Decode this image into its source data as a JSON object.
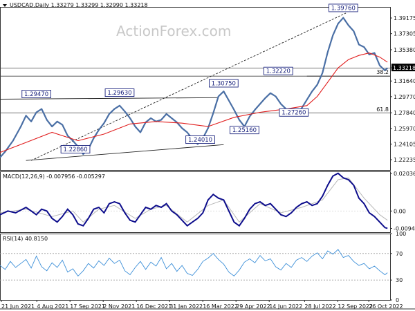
{
  "watermark": "ActionForex.com",
  "chart_data": {
    "type": "line",
    "price_panel": {
      "header": {
        "symbol": "USDCAD,Daily",
        "values": "1.33279 1.33299 1.32990 1.33218"
      },
      "ylim": [
        1.21,
        1.405
      ],
      "y_ticks": [
        "1.39175",
        "1.37305",
        "1.35380",
        "1.33218",
        "1.31640",
        "1.29770",
        "1.27840",
        "1.25970",
        "1.24105",
        "1.22235"
      ],
      "current_price": "1.33218",
      "price_path": [
        [
          0,
          1.225
        ],
        [
          2,
          1.232
        ],
        [
          5,
          1.245
        ],
        [
          8,
          1.262
        ],
        [
          10,
          1.275
        ],
        [
          12,
          1.268
        ],
        [
          14,
          1.279
        ],
        [
          16,
          1.283
        ],
        [
          18,
          1.27
        ],
        [
          20,
          1.262
        ],
        [
          22,
          1.268
        ],
        [
          24,
          1.264
        ],
        [
          26,
          1.251
        ],
        [
          28,
          1.245
        ],
        [
          30,
          1.238
        ],
        [
          32,
          1.229
        ],
        [
          34,
          1.235
        ],
        [
          36,
          1.248
        ],
        [
          38,
          1.258
        ],
        [
          40,
          1.266
        ],
        [
          42,
          1.277
        ],
        [
          44,
          1.283
        ],
        [
          46,
          1.287
        ],
        [
          48,
          1.28
        ],
        [
          50,
          1.272
        ],
        [
          52,
          1.262
        ],
        [
          54,
          1.255
        ],
        [
          56,
          1.267
        ],
        [
          58,
          1.272
        ],
        [
          60,
          1.268
        ],
        [
          62,
          1.27
        ],
        [
          64,
          1.277
        ],
        [
          66,
          1.272
        ],
        [
          68,
          1.267
        ],
        [
          70,
          1.26
        ],
        [
          72,
          1.255
        ],
        [
          74,
          1.247
        ],
        [
          76,
          1.241
        ],
        [
          78,
          1.248
        ],
        [
          80,
          1.26
        ],
        [
          82,
          1.278
        ],
        [
          84,
          1.298
        ],
        [
          86,
          1.304
        ],
        [
          88,
          1.293
        ],
        [
          90,
          1.282
        ],
        [
          92,
          1.27
        ],
        [
          94,
          1.262
        ],
        [
          96,
          1.274
        ],
        [
          98,
          1.282
        ],
        [
          100,
          1.289
        ],
        [
          102,
          1.296
        ],
        [
          104,
          1.302
        ],
        [
          106,
          1.298
        ],
        [
          108,
          1.289
        ],
        [
          110,
          1.283
        ],
        [
          112,
          1.281
        ],
        [
          114,
          1.277
        ],
        [
          116,
          1.284
        ],
        [
          118,
          1.294
        ],
        [
          120,
          1.304
        ],
        [
          122,
          1.312
        ],
        [
          124,
          1.326
        ],
        [
          126,
          1.351
        ],
        [
          128,
          1.371
        ],
        [
          130,
          1.385
        ],
        [
          132,
          1.392
        ],
        [
          134,
          1.383
        ],
        [
          136,
          1.376
        ],
        [
          138,
          1.36
        ],
        [
          140,
          1.357
        ],
        [
          142,
          1.348
        ],
        [
          144,
          1.35
        ],
        [
          146,
          1.335
        ],
        [
          148,
          1.329
        ],
        [
          149,
          1.332
        ]
      ],
      "ma_path": [
        [
          0,
          1.231
        ],
        [
          10,
          1.243
        ],
        [
          20,
          1.255
        ],
        [
          30,
          1.245
        ],
        [
          40,
          1.253
        ],
        [
          50,
          1.265
        ],
        [
          60,
          1.268
        ],
        [
          70,
          1.266
        ],
        [
          80,
          1.262
        ],
        [
          90,
          1.273
        ],
        [
          100,
          1.279
        ],
        [
          110,
          1.283
        ],
        [
          118,
          1.287
        ],
        [
          122,
          1.298
        ],
        [
          126,
          1.315
        ],
        [
          130,
          1.332
        ],
        [
          134,
          1.342
        ],
        [
          138,
          1.347
        ],
        [
          142,
          1.35
        ],
        [
          146,
          1.345
        ],
        [
          149,
          1.339
        ]
      ],
      "annotations": [
        {
          "text": "1.29470",
          "x": 14,
          "y": 1.2947,
          "side": "left"
        },
        {
          "text": "1.29630",
          "x": 46,
          "y": 1.2963,
          "side": "left"
        },
        {
          "text": "1.22860",
          "x": 29,
          "y": 1.2286,
          "side": "left"
        },
        {
          "text": "1.24010",
          "x": 77,
          "y": 1.2401,
          "side": "left"
        },
        {
          "text": "1.30750",
          "x": 86,
          "y": 1.3075,
          "side": "left"
        },
        {
          "text": "1.25160",
          "x": 94,
          "y": 1.2516,
          "side": "left"
        },
        {
          "text": "1.32220",
          "x": 107,
          "y": 1.3222,
          "side": "left"
        },
        {
          "text": "1.27260",
          "x": 113,
          "y": 1.2726,
          "side": "left"
        },
        {
          "text": "1.39760",
          "x": 132,
          "y": 1.3976,
          "side": "left"
        }
      ],
      "fib_labels": [
        {
          "text": "61.8",
          "y": 1.2784
        },
        {
          "text": "38.2",
          "y": 1.3233
        }
      ],
      "hlines": [
        1.3222,
        1.3319,
        1.2784
      ],
      "trendlines": [
        {
          "from": [
            0,
            1.2947
          ],
          "to": [
            84,
            1.2965
          ],
          "style": "solid"
        },
        {
          "from": [
            10,
            1.2214
          ],
          "to": [
            86,
            1.2403
          ],
          "style": "solid"
        },
        {
          "from": [
            12,
            1.2214
          ],
          "to": [
            133,
            1.3976
          ],
          "style": "dashed"
        },
        {
          "from": [
            118,
            1.3222
          ],
          "to": [
            150,
            1.3222
          ],
          "style": "solid"
        }
      ]
    },
    "macd_panel": {
      "header": "MACD(12,26,9) -0.007956 -0.005297",
      "ylim": [
        -0.0115,
        0.0215
      ],
      "y_ticks": [
        "0.02036",
        "0.00",
        "-0.009438"
      ],
      "macd_path": [
        [
          0,
          -0.002
        ],
        [
          3,
          0.0
        ],
        [
          6,
          -0.001
        ],
        [
          10,
          0.002
        ],
        [
          12,
          0.0
        ],
        [
          14,
          -0.002
        ],
        [
          16,
          0.001
        ],
        [
          18,
          0.0
        ],
        [
          20,
          -0.004
        ],
        [
          22,
          -0.006
        ],
        [
          24,
          -0.003
        ],
        [
          26,
          0.001
        ],
        [
          28,
          -0.002
        ],
        [
          30,
          -0.007
        ],
        [
          32,
          -0.008
        ],
        [
          34,
          -0.004
        ],
        [
          36,
          0.001
        ],
        [
          38,
          0.002
        ],
        [
          40,
          -0.001
        ],
        [
          42,
          0.004
        ],
        [
          44,
          0.005
        ],
        [
          46,
          0.004
        ],
        [
          48,
          -0.001
        ],
        [
          50,
          -0.005
        ],
        [
          52,
          -0.006
        ],
        [
          54,
          -0.002
        ],
        [
          56,
          0.002
        ],
        [
          58,
          0.001
        ],
        [
          60,
          0.003
        ],
        [
          62,
          0.002
        ],
        [
          64,
          0.004
        ],
        [
          66,
          0.0
        ],
        [
          68,
          -0.002
        ],
        [
          70,
          -0.005
        ],
        [
          72,
          -0.008
        ],
        [
          74,
          -0.006
        ],
        [
          76,
          -0.004
        ],
        [
          78,
          -0.001
        ],
        [
          80,
          0.006
        ],
        [
          82,
          0.009
        ],
        [
          84,
          0.007
        ],
        [
          86,
          0.006
        ],
        [
          88,
          0.0
        ],
        [
          90,
          -0.006
        ],
        [
          92,
          -0.008
        ],
        [
          94,
          -0.004
        ],
        [
          96,
          0.001
        ],
        [
          98,
          0.004
        ],
        [
          100,
          0.005
        ],
        [
          102,
          0.003
        ],
        [
          104,
          0.004
        ],
        [
          106,
          0.001
        ],
        [
          108,
          -0.002
        ],
        [
          110,
          -0.003
        ],
        [
          112,
          -0.001
        ],
        [
          114,
          0.002
        ],
        [
          116,
          0.004
        ],
        [
          118,
          0.005
        ],
        [
          120,
          0.003
        ],
        [
          122,
          0.004
        ],
        [
          124,
          0.008
        ],
        [
          126,
          0.014
        ],
        [
          128,
          0.019
        ],
        [
          130,
          0.0205
        ],
        [
          132,
          0.018
        ],
        [
          134,
          0.017
        ],
        [
          136,
          0.014
        ],
        [
          138,
          0.007
        ],
        [
          140,
          0.004
        ],
        [
          142,
          -0.001
        ],
        [
          144,
          -0.003
        ],
        [
          146,
          -0.006
        ],
        [
          148,
          -0.009
        ],
        [
          149,
          -0.0094
        ]
      ],
      "signal_path": [
        [
          0,
          -0.001
        ],
        [
          10,
          0.001
        ],
        [
          20,
          -0.003
        ],
        [
          28,
          0.0
        ],
        [
          32,
          -0.006
        ],
        [
          38,
          0.001
        ],
        [
          44,
          0.003
        ],
        [
          52,
          -0.004
        ],
        [
          58,
          0.001
        ],
        [
          64,
          0.003
        ],
        [
          72,
          -0.006
        ],
        [
          80,
          0.003
        ],
        [
          86,
          0.006
        ],
        [
          92,
          -0.006
        ],
        [
          100,
          0.004
        ],
        [
          108,
          -0.001
        ],
        [
          116,
          0.002
        ],
        [
          124,
          0.006
        ],
        [
          130,
          0.017
        ],
        [
          134,
          0.018
        ],
        [
          140,
          0.007
        ],
        [
          146,
          -0.002
        ],
        [
          149,
          -0.005
        ]
      ]
    },
    "rsi_panel": {
      "header": "RSI(14) 40.8150",
      "ylim": [
        0,
        100
      ],
      "y_ticks": [
        "100",
        "70",
        "30",
        "0"
      ],
      "rsi_path": [
        [
          0,
          52
        ],
        [
          2,
          46
        ],
        [
          4,
          58
        ],
        [
          6,
          49
        ],
        [
          8,
          55
        ],
        [
          10,
          61
        ],
        [
          12,
          48
        ],
        [
          14,
          66
        ],
        [
          16,
          50
        ],
        [
          18,
          44
        ],
        [
          20,
          56
        ],
        [
          22,
          49
        ],
        [
          24,
          60
        ],
        [
          26,
          42
        ],
        [
          28,
          47
        ],
        [
          30,
          36
        ],
        [
          32,
          44
        ],
        [
          34,
          55
        ],
        [
          36,
          48
        ],
        [
          38,
          59
        ],
        [
          40,
          52
        ],
        [
          42,
          63
        ],
        [
          44,
          55
        ],
        [
          46,
          60
        ],
        [
          48,
          44
        ],
        [
          50,
          38
        ],
        [
          52,
          49
        ],
        [
          54,
          58
        ],
        [
          56,
          46
        ],
        [
          58,
          57
        ],
        [
          60,
          51
        ],
        [
          62,
          64
        ],
        [
          64,
          47
        ],
        [
          66,
          55
        ],
        [
          68,
          43
        ],
        [
          70,
          52
        ],
        [
          72,
          40
        ],
        [
          74,
          37
        ],
        [
          76,
          46
        ],
        [
          78,
          58
        ],
        [
          80,
          63
        ],
        [
          82,
          70
        ],
        [
          84,
          61
        ],
        [
          86,
          54
        ],
        [
          88,
          42
        ],
        [
          90,
          36
        ],
        [
          92,
          45
        ],
        [
          94,
          57
        ],
        [
          96,
          62
        ],
        [
          98,
          56
        ],
        [
          100,
          67
        ],
        [
          102,
          59
        ],
        [
          104,
          62
        ],
        [
          106,
          50
        ],
        [
          108,
          45
        ],
        [
          110,
          55
        ],
        [
          112,
          49
        ],
        [
          114,
          60
        ],
        [
          116,
          64
        ],
        [
          118,
          58
        ],
        [
          120,
          66
        ],
        [
          122,
          71
        ],
        [
          124,
          62
        ],
        [
          126,
          74
        ],
        [
          128,
          69
        ],
        [
          130,
          76
        ],
        [
          132,
          64
        ],
        [
          134,
          67
        ],
        [
          136,
          58
        ],
        [
          138,
          52
        ],
        [
          140,
          55
        ],
        [
          142,
          47
        ],
        [
          144,
          51
        ],
        [
          146,
          44
        ],
        [
          148,
          38
        ],
        [
          149,
          41
        ]
      ]
    },
    "x_axis": {
      "range": [
        0,
        150
      ],
      "ticks": [
        {
          "label": "21 Jun 2021",
          "x": 0
        },
        {
          "label": "4 Aug 2021",
          "x": 16
        },
        {
          "label": "17 Sep 2021",
          "x": 31
        },
        {
          "label": "2 Nov 2021",
          "x": 46
        },
        {
          "label": "16 Dec 2021",
          "x": 61
        },
        {
          "label": "31 Jan 2022",
          "x": 76
        },
        {
          "label": "16 Mar 2022",
          "x": 91
        },
        {
          "label": "29 Apr 2022",
          "x": 106
        },
        {
          "label": "14 Jun 2022",
          "x": 121
        },
        {
          "label": "28 Jul 2022",
          "x": 137
        },
        {
          "label": "12 Sep 2022",
          "x": 152
        },
        {
          "label": "26 Oct 2022",
          "x": 166
        }
      ]
    },
    "colors": {
      "price": "#4a6fa5",
      "ma": "#e11d1d",
      "macd": "#0d0d8c",
      "signal": "#b8b8b8",
      "rsi": "#3c8fd8",
      "label_border": "#1a237e",
      "label_bg": "#ffffff",
      "hline": "#444444",
      "grid": "#dddddd",
      "current_price_bg": "#000000",
      "current_price_fg": "#ffffff"
    }
  }
}
